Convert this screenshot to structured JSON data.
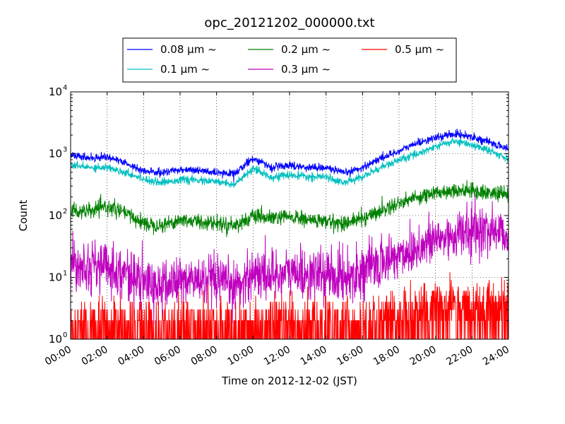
{
  "chart_data": {
    "type": "line",
    "title": "opc_20121202_000000.txt",
    "xlabel": "Time on 2012-12-02 (JST)",
    "ylabel": "Count",
    "yscale": "log",
    "ylim": [
      1,
      10000
    ],
    "xlim": [
      "00:00",
      "24:00"
    ],
    "grid": true,
    "legend_position": "top-center",
    "x_ticks": [
      "00:00",
      "02:00",
      "04:00",
      "06:00",
      "08:00",
      "10:00",
      "12:00",
      "14:00",
      "16:00",
      "18:00",
      "20:00",
      "22:00",
      "24:00"
    ],
    "y_ticks": [
      {
        "base": "10",
        "exp": "0",
        "value": 1
      },
      {
        "base": "10",
        "exp": "1",
        "value": 10
      },
      {
        "base": "10",
        "exp": "2",
        "value": 100
      },
      {
        "base": "10",
        "exp": "3",
        "value": 1000
      },
      {
        "base": "10",
        "exp": "4",
        "value": 10000
      }
    ],
    "x_hours": [
      0,
      1,
      2,
      3,
      4,
      5,
      6,
      7,
      8,
      9,
      10,
      11,
      12,
      13,
      14,
      15,
      16,
      17,
      18,
      19,
      20,
      21,
      22,
      23,
      24
    ],
    "series": [
      {
        "name": "0.08 μm ~",
        "color": "#0000ff",
        "noise": 0.03,
        "values": [
          950,
          850,
          900,
          700,
          520,
          490,
          560,
          540,
          480,
          480,
          850,
          600,
          650,
          600,
          600,
          480,
          600,
          850,
          1100,
          1500,
          1800,
          2100,
          1900,
          1500,
          1200
        ]
      },
      {
        "name": "0.1 μm ~",
        "color": "#00bfbf",
        "noise": 0.03,
        "values": [
          650,
          600,
          600,
          500,
          390,
          340,
          380,
          370,
          350,
          320,
          560,
          420,
          450,
          420,
          420,
          340,
          420,
          600,
          780,
          1000,
          1300,
          1600,
          1400,
          1100,
          850
        ]
      },
      {
        "name": "0.2 μm ~",
        "color": "#008000",
        "noise": 0.06,
        "values": [
          120,
          115,
          140,
          110,
          75,
          70,
          85,
          80,
          75,
          70,
          95,
          90,
          95,
          85,
          80,
          75,
          90,
          120,
          160,
          200,
          230,
          260,
          250,
          230,
          220
        ]
      },
      {
        "name": "0.3 μm ~",
        "color": "#bf00bf",
        "noise": 0.2,
        "values": [
          18,
          16,
          15,
          12,
          8,
          7,
          9,
          9,
          8,
          7,
          12,
          11,
          12,
          11,
          11,
          10,
          13,
          17,
          23,
          30,
          40,
          48,
          55,
          60,
          50
        ]
      },
      {
        "name": "0.5 μm ~",
        "color": "#ff0000",
        "noise": 0,
        "values": [
          1.3,
          1.3,
          1.3,
          1.2,
          1.1,
          1.1,
          1.1,
          1.1,
          1.1,
          1.1,
          1.2,
          1.2,
          1.3,
          1.3,
          1.3,
          1.3,
          1.4,
          1.6,
          1.9,
          2.3,
          2.8,
          3.2,
          3.0,
          2.7,
          2.5
        ]
      }
    ]
  }
}
